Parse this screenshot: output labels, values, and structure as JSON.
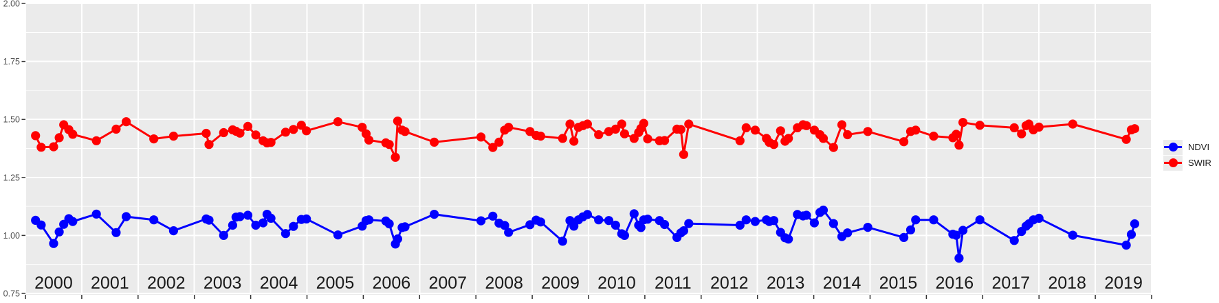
{
  "legend": {
    "items": [
      {
        "label": "NDVI",
        "color": "#0000FF",
        "icon": "point-with-line"
      },
      {
        "label": "SWIR",
        "color": "#FF0000",
        "icon": "point-with-line"
      }
    ],
    "position": "right",
    "key_background": "#EBEBEB"
  },
  "chart_data": {
    "type": "line",
    "title": "",
    "xlabel": "",
    "ylabel": "",
    "x_axis": {
      "range": [
        2000,
        2020
      ],
      "year_labels": [
        "2000",
        "2001",
        "2002",
        "2003",
        "2004",
        "2005",
        "2006",
        "2007",
        "2008",
        "2009",
        "2010",
        "2011",
        "2012",
        "2013",
        "2014",
        "2015",
        "2016",
        "2017",
        "2018",
        "2019"
      ],
      "gridlines_at_year_boundaries": true
    },
    "y_axis": {
      "range": [
        0.75,
        2.0
      ],
      "ticks": [
        {
          "v": 0.75,
          "label": "0.75"
        },
        {
          "v": 1.0,
          "label": "1.00"
        },
        {
          "v": 1.25,
          "label": "1.25"
        },
        {
          "v": 1.5,
          "label": "1.50"
        },
        {
          "v": 1.75,
          "label": "1.75"
        },
        {
          "v": 2.0,
          "label": "2.00"
        }
      ],
      "minor_ticks": [
        0.875,
        1.125,
        1.375,
        1.625,
        1.875
      ]
    },
    "style": {
      "panel_bg": "#EBEBEB",
      "grid_major": "#FFFFFF",
      "grid_minor": "#FFFFFF",
      "tick_color": "#333333",
      "y_tick_label_color": "#4D4D4D",
      "x_year_label_color": "#1a1a1a",
      "grid": true,
      "legend_position": "right"
    },
    "x": [
      2000.18,
      2000.28,
      2000.5,
      2000.6,
      2000.68,
      2000.77,
      2000.84,
      2001.26,
      2001.61,
      2001.79,
      2002.28,
      2002.63,
      2003.21,
      2003.26,
      2003.52,
      2003.68,
      2003.74,
      2003.81,
      2003.95,
      2004.09,
      2004.22,
      2004.29,
      2004.36,
      2004.62,
      2004.76,
      2004.9,
      2004.99,
      2005.55,
      2005.98,
      2006.05,
      2006.1,
      2006.4,
      2006.46,
      2006.57,
      2006.61,
      2006.69,
      2006.74,
      2007.26,
      2008.09,
      2008.3,
      2008.41,
      2008.51,
      2008.58,
      2008.96,
      2009.07,
      2009.15,
      2009.54,
      2009.67,
      2009.74,
      2009.82,
      2009.9,
      2009.98,
      2010.18,
      2010.36,
      2010.48,
      2010.59,
      2010.64,
      2010.81,
      2010.89,
      2010.93,
      2010.98,
      2011.05,
      2011.26,
      2011.35,
      2011.57,
      2011.64,
      2011.69,
      2011.78,
      2012.69,
      2012.8,
      2012.96,
      2013.16,
      2013.21,
      2013.29,
      2013.41,
      2013.49,
      2013.55,
      2013.71,
      2013.81,
      2013.87,
      2014.01,
      2014.11,
      2014.17,
      2014.35,
      2014.5,
      2014.6,
      2014.96,
      2015.6,
      2015.72,
      2015.81,
      2016.13,
      2016.47,
      2016.53,
      2016.58,
      2016.65,
      2016.95,
      2017.56,
      2017.69,
      2017.77,
      2017.82,
      2017.9,
      2018.0,
      2018.6,
      2019.55,
      2019.64,
      2019.7
    ],
    "series": [
      {
        "name": "NDVI",
        "color": "#0000FF",
        "values": [
          1.065,
          1.045,
          0.965,
          1.015,
          1.048,
          1.072,
          1.06,
          1.092,
          1.012,
          1.081,
          1.067,
          1.02,
          1.071,
          1.066,
          1.0,
          1.044,
          1.079,
          1.081,
          1.087,
          1.044,
          1.054,
          1.091,
          1.074,
          1.008,
          1.039,
          1.069,
          1.071,
          1.002,
          1.04,
          1.064,
          1.067,
          1.062,
          1.05,
          0.963,
          0.985,
          1.034,
          1.037,
          1.091,
          1.063,
          1.083,
          1.053,
          1.043,
          1.013,
          1.046,
          1.066,
          1.058,
          0.975,
          1.064,
          1.04,
          1.067,
          1.08,
          1.09,
          1.067,
          1.064,
          1.044,
          1.007,
          1.0,
          1.093,
          1.044,
          1.034,
          1.067,
          1.07,
          1.064,
          1.047,
          0.991,
          1.011,
          1.02,
          1.051,
          1.044,
          1.067,
          1.06,
          1.067,
          1.06,
          1.064,
          1.013,
          0.99,
          0.984,
          1.09,
          1.084,
          1.087,
          1.054,
          1.099,
          1.109,
          1.051,
          0.995,
          1.011,
          1.035,
          0.991,
          1.024,
          1.067,
          1.067,
          1.005,
          1.001,
          0.902,
          1.022,
          1.067,
          0.978,
          1.017,
          1.04,
          1.05,
          1.067,
          1.074,
          1.001,
          0.958,
          1.004,
          1.05
        ]
      },
      {
        "name": "SWIR",
        "color": "#FF0000",
        "values": [
          1.43,
          1.38,
          1.382,
          1.421,
          1.477,
          1.456,
          1.436,
          1.408,
          1.458,
          1.49,
          1.416,
          1.428,
          1.44,
          1.392,
          1.443,
          1.455,
          1.449,
          1.441,
          1.47,
          1.433,
          1.408,
          1.399,
          1.401,
          1.445,
          1.457,
          1.475,
          1.451,
          1.49,
          1.466,
          1.438,
          1.411,
          1.399,
          1.392,
          1.337,
          1.493,
          1.454,
          1.448,
          1.402,
          1.424,
          1.379,
          1.402,
          1.454,
          1.466,
          1.448,
          1.431,
          1.428,
          1.418,
          1.48,
          1.406,
          1.466,
          1.473,
          1.48,
          1.434,
          1.448,
          1.458,
          1.48,
          1.438,
          1.418,
          1.444,
          1.461,
          1.483,
          1.416,
          1.408,
          1.409,
          1.458,
          1.457,
          1.349,
          1.48,
          1.408,
          1.464,
          1.454,
          1.418,
          1.401,
          1.392,
          1.451,
          1.406,
          1.418,
          1.464,
          1.477,
          1.473,
          1.454,
          1.434,
          1.418,
          1.379,
          1.477,
          1.434,
          1.448,
          1.404,
          1.448,
          1.454,
          1.428,
          1.421,
          1.436,
          1.389,
          1.487,
          1.475,
          1.464,
          1.438,
          1.473,
          1.48,
          1.455,
          1.467,
          1.48,
          1.414,
          1.455,
          1.46
        ]
      }
    ]
  }
}
